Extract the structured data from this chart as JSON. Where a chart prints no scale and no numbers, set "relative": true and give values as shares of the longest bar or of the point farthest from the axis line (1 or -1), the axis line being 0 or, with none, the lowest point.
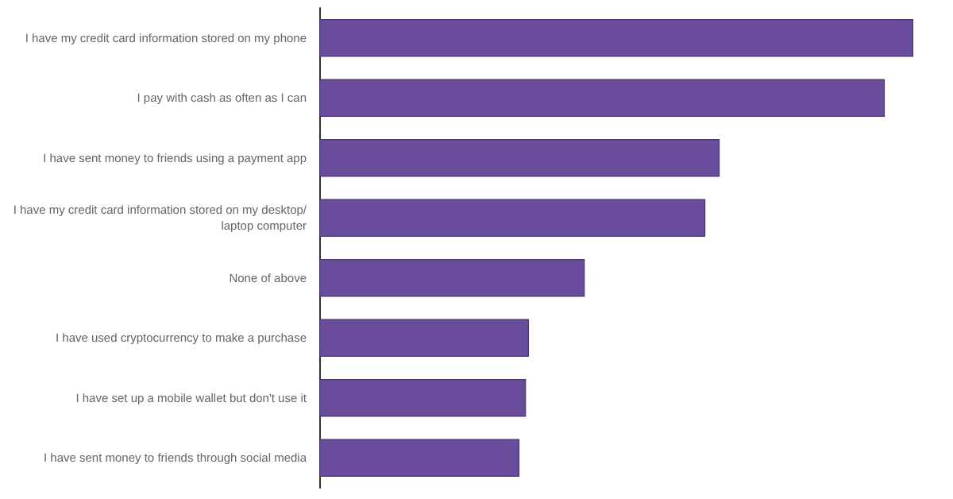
{
  "chart_data": {
    "type": "bar",
    "orientation": "horizontal",
    "relative": true,
    "categories": [
      "I have my credit card information stored on my phone",
      "I pay with cash as often as I can",
      "I have sent money to friends using a payment app",
      "I have my credit card information stored on my desktop/laptop computer",
      "None of above",
      "I have used cryptocurrency to make a purchase",
      "I have set up a mobile wallet but don't use it",
      "I have sent money to friends through social media"
    ],
    "values": [
      1,
      0.952,
      0.674,
      0.65,
      0.447,
      0.353,
      0.348,
      0.337
    ],
    "color": "#6a4c9c"
  }
}
